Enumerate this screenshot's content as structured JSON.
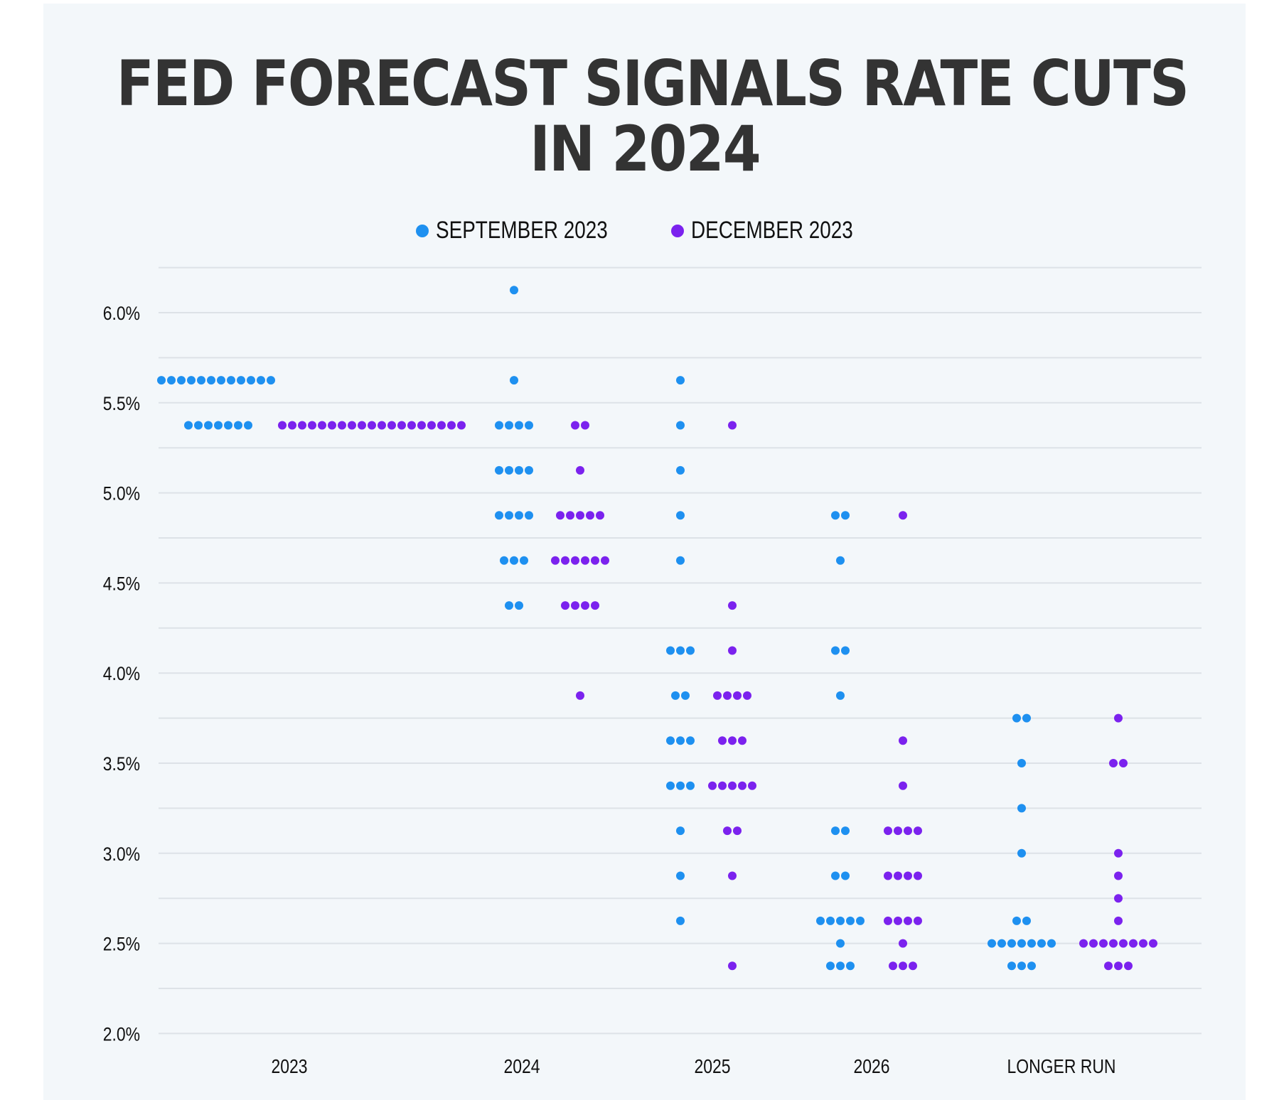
{
  "chart_data": {
    "type": "scatter",
    "subtype": "dot-plot",
    "title": "FED FORECAST SIGNALS RATE CUTS IN 2024",
    "title_lines": [
      "FED FORECAST SIGNALS RATE CUTS",
      "IN 2024"
    ],
    "xlabel": "",
    "ylabel": "",
    "categories": [
      "2023",
      "2024",
      "2025",
      "2026",
      "LONGER RUN"
    ],
    "y_ticks": [
      "2.0%",
      "2.5%",
      "3.0%",
      "3.5%",
      "4.0%",
      "4.5%",
      "5.0%",
      "5.5%",
      "6.0%"
    ],
    "ylim": [
      2.0,
      6.25
    ],
    "grid": true,
    "grid_step": 0.25,
    "legend_position": "top-center",
    "series": [
      {
        "name": "SEPTEMBER 2023",
        "color": "#1e90f0",
        "points": [
          {
            "category": "2023",
            "rate": 5.625,
            "count": 12
          },
          {
            "category": "2023",
            "rate": 5.375,
            "count": 7
          },
          {
            "category": "2024",
            "rate": 6.125,
            "count": 1
          },
          {
            "category": "2024",
            "rate": 5.625,
            "count": 1
          },
          {
            "category": "2024",
            "rate": 5.375,
            "count": 4
          },
          {
            "category": "2024",
            "rate": 5.125,
            "count": 4
          },
          {
            "category": "2024",
            "rate": 4.875,
            "count": 4
          },
          {
            "category": "2024",
            "rate": 4.625,
            "count": 3
          },
          {
            "category": "2024",
            "rate": 4.375,
            "count": 2
          },
          {
            "category": "2025",
            "rate": 5.625,
            "count": 1
          },
          {
            "category": "2025",
            "rate": 5.375,
            "count": 1
          },
          {
            "category": "2025",
            "rate": 5.125,
            "count": 1
          },
          {
            "category": "2025",
            "rate": 4.875,
            "count": 1
          },
          {
            "category": "2025",
            "rate": 4.625,
            "count": 1
          },
          {
            "category": "2025",
            "rate": 4.125,
            "count": 3
          },
          {
            "category": "2025",
            "rate": 3.875,
            "count": 2
          },
          {
            "category": "2025",
            "rate": 3.625,
            "count": 3
          },
          {
            "category": "2025",
            "rate": 3.375,
            "count": 3
          },
          {
            "category": "2025",
            "rate": 3.125,
            "count": 1
          },
          {
            "category": "2025",
            "rate": 2.875,
            "count": 1
          },
          {
            "category": "2025",
            "rate": 2.625,
            "count": 1
          },
          {
            "category": "2026",
            "rate": 4.875,
            "count": 2
          },
          {
            "category": "2026",
            "rate": 4.625,
            "count": 1
          },
          {
            "category": "2026",
            "rate": 4.125,
            "count": 2
          },
          {
            "category": "2026",
            "rate": 3.875,
            "count": 1
          },
          {
            "category": "2026",
            "rate": 3.125,
            "count": 2
          },
          {
            "category": "2026",
            "rate": 2.875,
            "count": 2
          },
          {
            "category": "2026",
            "rate": 2.625,
            "count": 5
          },
          {
            "category": "2026",
            "rate": 2.5,
            "count": 1
          },
          {
            "category": "2026",
            "rate": 2.375,
            "count": 3
          },
          {
            "category": "LONGER RUN",
            "rate": 3.75,
            "count": 2
          },
          {
            "category": "LONGER RUN",
            "rate": 3.5,
            "count": 1
          },
          {
            "category": "LONGER RUN",
            "rate": 3.25,
            "count": 1
          },
          {
            "category": "LONGER RUN",
            "rate": 3.0,
            "count": 1
          },
          {
            "category": "LONGER RUN",
            "rate": 2.625,
            "count": 2
          },
          {
            "category": "LONGER RUN",
            "rate": 2.5,
            "count": 7
          },
          {
            "category": "LONGER RUN",
            "rate": 2.375,
            "count": 3
          }
        ]
      },
      {
        "name": "DECEMBER 2023",
        "color": "#7b22ee",
        "points": [
          {
            "category": "2023",
            "rate": 5.375,
            "count": 19
          },
          {
            "category": "2024",
            "rate": 5.375,
            "count": 2
          },
          {
            "category": "2024",
            "rate": 5.125,
            "count": 1
          },
          {
            "category": "2024",
            "rate": 4.875,
            "count": 5
          },
          {
            "category": "2024",
            "rate": 4.625,
            "count": 6
          },
          {
            "category": "2024",
            "rate": 4.375,
            "count": 4
          },
          {
            "category": "2024",
            "rate": 3.875,
            "count": 1
          },
          {
            "category": "2025",
            "rate": 5.375,
            "count": 1
          },
          {
            "category": "2025",
            "rate": 4.375,
            "count": 1
          },
          {
            "category": "2025",
            "rate": 4.125,
            "count": 1
          },
          {
            "category": "2025",
            "rate": 3.875,
            "count": 4
          },
          {
            "category": "2025",
            "rate": 3.625,
            "count": 3
          },
          {
            "category": "2025",
            "rate": 3.375,
            "count": 5
          },
          {
            "category": "2025",
            "rate": 3.125,
            "count": 2
          },
          {
            "category": "2025",
            "rate": 2.875,
            "count": 1
          },
          {
            "category": "2025",
            "rate": 2.375,
            "count": 1
          },
          {
            "category": "2026",
            "rate": 4.875,
            "count": 1
          },
          {
            "category": "2026",
            "rate": 3.625,
            "count": 1
          },
          {
            "category": "2026",
            "rate": 3.375,
            "count": 1
          },
          {
            "category": "2026",
            "rate": 3.125,
            "count": 4
          },
          {
            "category": "2026",
            "rate": 2.875,
            "count": 4
          },
          {
            "category": "2026",
            "rate": 2.625,
            "count": 4
          },
          {
            "category": "2026",
            "rate": 2.5,
            "count": 1
          },
          {
            "category": "2026",
            "rate": 2.375,
            "count": 3
          },
          {
            "category": "LONGER RUN",
            "rate": 3.75,
            "count": 1
          },
          {
            "category": "LONGER RUN",
            "rate": 3.5,
            "count": 2
          },
          {
            "category": "LONGER RUN",
            "rate": 3.0,
            "count": 1
          },
          {
            "category": "LONGER RUN",
            "rate": 2.875,
            "count": 1
          },
          {
            "category": "LONGER RUN",
            "rate": 2.75,
            "count": 1
          },
          {
            "category": "LONGER RUN",
            "rate": 2.625,
            "count": 1
          },
          {
            "category": "LONGER RUN",
            "rate": 2.5,
            "count": 8
          },
          {
            "category": "LONGER RUN",
            "rate": 2.375,
            "count": 3
          }
        ]
      }
    ]
  }
}
